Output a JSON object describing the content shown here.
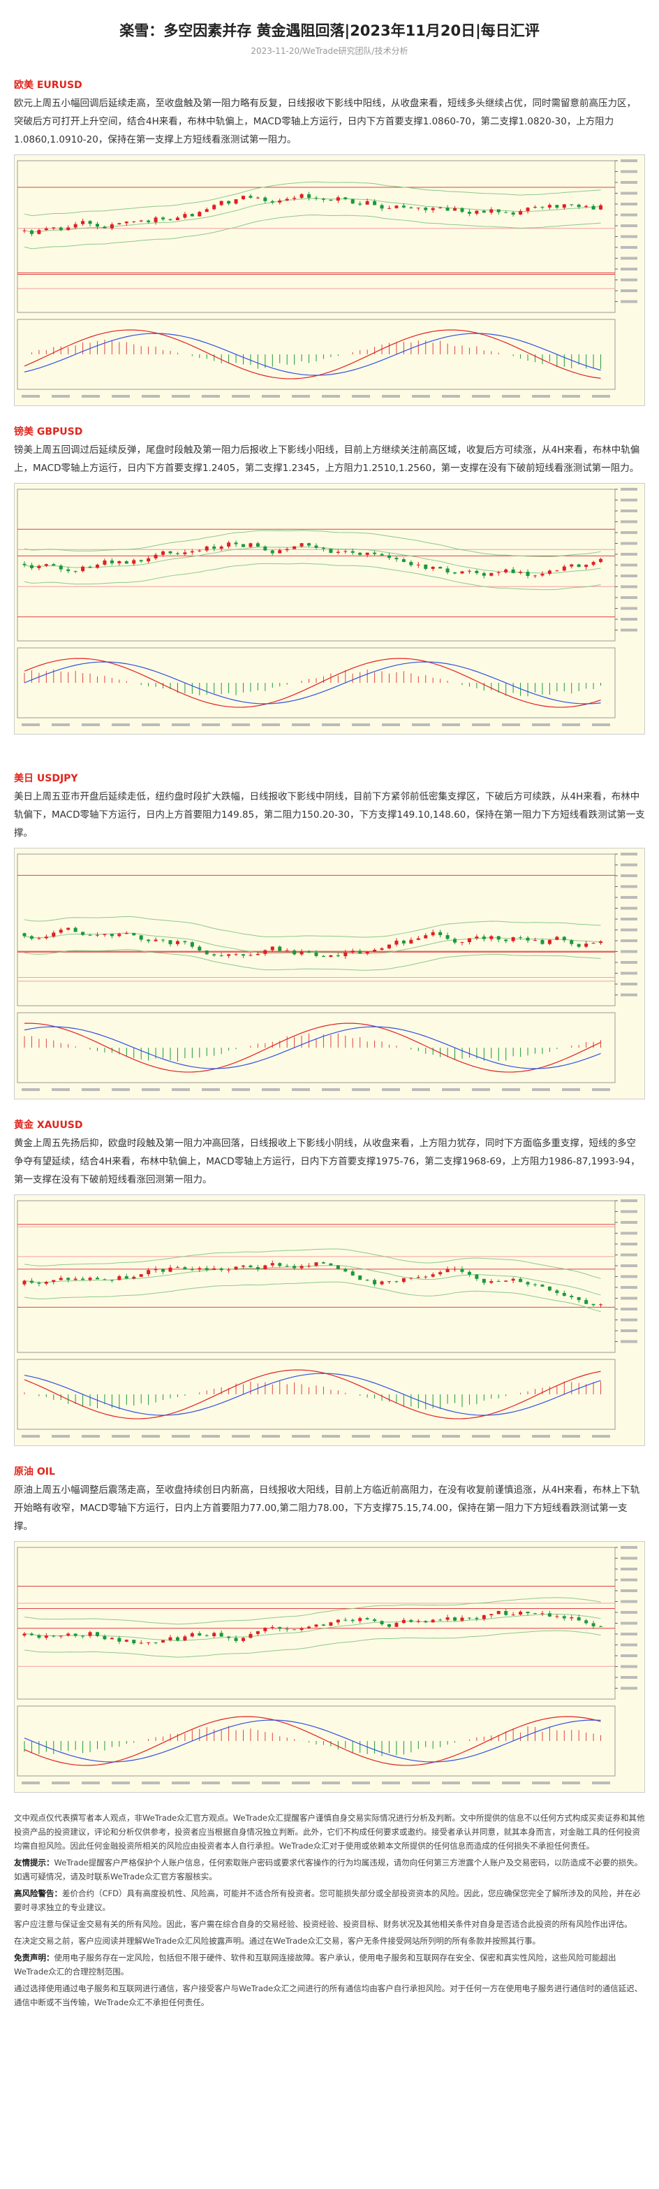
{
  "header": {
    "title": "楽雪：多空因素并存 黄金遇阻回落|2023年11月20日|每日汇评",
    "subtitle": "2023-11-20/WeTrade研究团队/技术分析"
  },
  "sections": [
    {
      "heading": "欧美 EURUSD",
      "text": "欧元上周五小幅回调后延续走高，至收盘触及第一阻力略有反复，日线报收下影线中阳线，从收盘来看，短线多头继续占优，同时需留意前高压力区，突破后方可打开上升空间，结合4H来看，布林中轨偏上，MACD零轴上方运行，日内下方首要支撑1.0860-70，第二支撑1.0820-30，上方阻力1.0860,1.0910-20，保持在第一支撑上方短线看涨测试第一阻力。"
    },
    {
      "heading": "镑美 GBPUSD",
      "text": "镑美上周五回调过后延续反弹，尾盘时段触及第一阻力后报收上下影线小阳线，目前上方继续关注前高区域，收复后方可续涨，从4H来看，布林中轨偏上，MACD零轴上方运行，日内下方首要支撑1.2405，第二支撑1.2345，上方阻力1.2510,1.2560，第一支撑在没有下破前短线看涨测试第一阻力。"
    },
    {
      "heading": "美日 USDJPY",
      "text": "美日上周五亚市开盘后延续走低，纽约盘时段扩大跌幅，日线报收下影线中阴线，目前下方紧邻前低密集支撑区，下破后方可续跌，从4H来看，布林中轨偏下，MACD零轴下方运行，日内上方首要阻力149.85，第二阻力150.20-30，下方支撑149.10,148.60，保持在第一阻力下方短线看跌测试第一支撑。"
    },
    {
      "heading": "黄金 XAUUSD",
      "text": "黄金上周五先扬后抑，欧盘时段触及第一阻力冲高回落，日线报收上下影线小阴线，从收盘来看，上方阻力犹存，同时下方面临多重支撑，短线的多空争夺有望延续，结合4H来看，布林中轨偏上，MACD零轴上方运行，日内下方首要支撑1975-76，第二支撑1968-69，上方阻力1986-87,1993-94，第一支撑在没有下破前短线看涨回测第一阻力。"
    },
    {
      "heading": "原油 OIL",
      "text": "原油上周五小幅调整后震荡走高，至收盘持续创日内新高，日线报收大阳线，目前上方临近前高阻力，在没有收复前谨慎追涨，从4H来看，布林上下轨开始略有收窄，MACD零轴下方运行，日内上方首要阻力77.00,第二阻力78.00，下方支撑75.15,74.00，保持在第一阻力下方短线看跌测试第一支撑。"
    }
  ],
  "disclaimer": [
    {
      "text": "文中观点仅代表撰写者本人观点，非WeTrade众汇官方观点。WeTrade众汇提醒客户谨慎自身交易实际情况进行分析及判断。文中所提供的信息不以任何方式构成买卖证券和其他投资产品的投资建议，评论和分析仅供参考，投资者应当根据自身情况独立判断。此外，它们不构成任何要求或邀约。接受者承认并同意，就其本身而言，对金融工具的任何投资均需自担风险。因此任何金融投资所相关的风险应由投资者本人自行承担。WeTrade众汇对于使用或依赖本文所提供的任何信息而造成的任何损失不承担任何责任。"
    },
    {
      "label": "友情提示：",
      "text": "WeTrade提醒客户严格保护个人账户信息，任何索取账户密码或要求代客操作的行为均属违规，请勿向任何第三方泄露个人账户及交易密码，以防造成不必要的损失。如遇可疑情况，请及时联系WeTrade众汇官方客服核实。"
    },
    {
      "label": "高风险警告：",
      "text": "差价合约（CFD）具有高度投机性、风险高，可能并不适合所有投资者。您可能损失部分或全部投资资本的风险。因此，您应确保您完全了解所涉及的风险，并在必要时寻求独立的专业建议。"
    },
    {
      "text": "客户应注意与保证金交易有关的所有风险。因此，客户需在综合自身的交易经验、投资经验、投资目标、财务状况及其他相关条件对自身是否适合此投资的所有风险作出评估。"
    },
    {
      "text": "在决定交易之前，客户应阅读并理解WeTrade众汇风险披露声明。通过在WeTrade众汇交易，客户无条件接受网站所列明的所有条款并按照其行事。"
    },
    {
      "label": "免责声明：",
      "text": "使用电子服务存在一定风险，包括但不限于硬件、软件和互联网连接故障。客户承认，使用电子服务和互联网存在安全、保密和真实性风险，这些风险可能超出WeTrade众汇的合理控制范围。"
    },
    {
      "text": "通过选择使用通过电子服务和互联网进行通信，客户接受客户与WeTrade众汇之间进行的所有通信均由客户自行承担风险。对于任何一方在使用电子服务进行通信时的通信延迟、通信中断或不当传输，WeTrade众汇不承担任何责任。"
    }
  ]
}
